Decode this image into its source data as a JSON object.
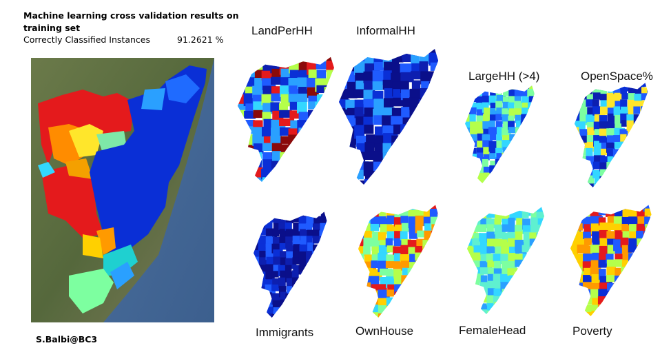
{
  "header": {
    "title_line1": "Machine learning cross validation results on",
    "title_line2": "training set",
    "metric": "Correctly Classified Instances",
    "metric_value": "91.2621 %"
  },
  "credit": "S.Balbi@BC3",
  "maps": [
    {
      "label": "LandPerHH"
    },
    {
      "label": "InformalHH"
    },
    {
      "label": "LargeHH (>4)"
    },
    {
      "label": "OpenSpace%"
    },
    {
      "label": "Immigrants"
    },
    {
      "label": "OwnHouse"
    },
    {
      "label": "FemaleHead"
    },
    {
      "label": "Poverty"
    }
  ]
}
